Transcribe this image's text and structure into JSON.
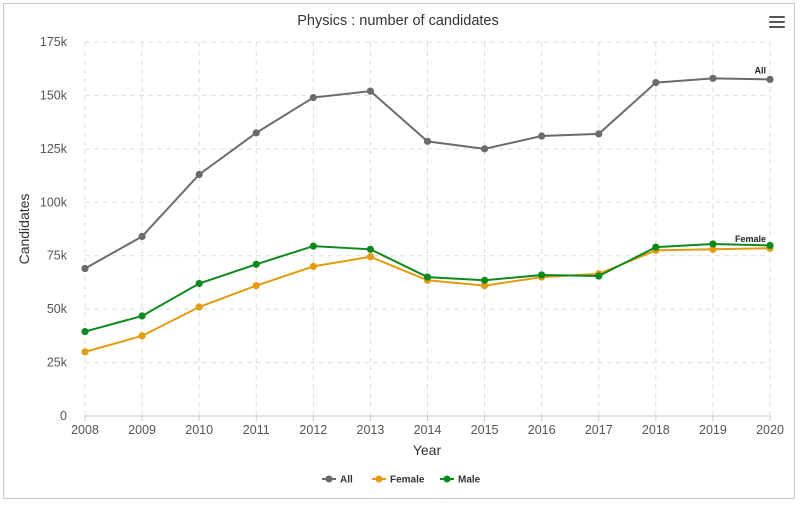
{
  "chart_data": {
    "type": "line",
    "title": "Physics : number of candidates",
    "xlabel": "Year",
    "ylabel": "Candidates",
    "categories": [
      "2008",
      "2009",
      "2010",
      "2011",
      "2012",
      "2013",
      "2014",
      "2015",
      "2016",
      "2017",
      "2018",
      "2019",
      "2020"
    ],
    "ylim": [
      0,
      175000
    ],
    "yticks": [
      {
        "value": 0,
        "label": "0"
      },
      {
        "value": 25000,
        "label": "25k"
      },
      {
        "value": 50000,
        "label": "50k"
      },
      {
        "value": 75000,
        "label": "75k"
      },
      {
        "value": 100000,
        "label": "100k"
      },
      {
        "value": 125000,
        "label": "125k"
      },
      {
        "value": 150000,
        "label": "150k"
      },
      {
        "value": 175000,
        "label": "175k"
      }
    ],
    "grid": true,
    "legend_position": "bottom-center",
    "series": [
      {
        "name": "All",
        "color": "#6b6b6b",
        "end_label": "All",
        "values": [
          69000,
          84000,
          113000,
          132500,
          149000,
          152000,
          128500,
          125000,
          131000,
          132000,
          156000,
          158000,
          157500
        ]
      },
      {
        "name": "Female",
        "color": "#e39b10",
        "end_label": "Female",
        "values": [
          30000,
          37500,
          51000,
          61000,
          70000,
          74500,
          63500,
          61000,
          65000,
          66500,
          77500,
          78000,
          78500
        ]
      },
      {
        "name": "Male",
        "color": "#0d8a1e",
        "end_label": "",
        "values": [
          39500,
          46800,
          62000,
          71000,
          79500,
          78000,
          65000,
          63500,
          66000,
          65500,
          79000,
          80500,
          79800
        ]
      }
    ]
  },
  "toolbar": {
    "menu_icon": "hamburger-menu-icon"
  }
}
